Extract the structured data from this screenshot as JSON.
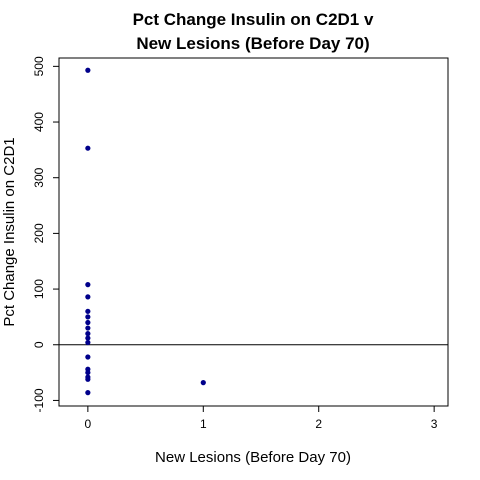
{
  "chart_data": {
    "type": "scatter",
    "title_lines": [
      "Pct Change Insulin on C2D1 v",
      "New Lesions (Before Day 70)"
    ],
    "xlabel": "New Lesions (Before Day 70)",
    "ylabel": "Pct Change Insulin on C2D1",
    "xlim": [
      -0.25,
      3.12
    ],
    "ylim": [
      -110,
      515
    ],
    "xticks": [
      0,
      1,
      2,
      3
    ],
    "yticks": [
      -100,
      0,
      100,
      200,
      300,
      400,
      500
    ],
    "reference_line_y": 0,
    "point_color": "#00008b",
    "points": [
      {
        "x": 0,
        "y": 493
      },
      {
        "x": 0,
        "y": 353
      },
      {
        "x": 0,
        "y": 108
      },
      {
        "x": 0,
        "y": 86
      },
      {
        "x": 0,
        "y": 60
      },
      {
        "x": 0,
        "y": 50
      },
      {
        "x": 0,
        "y": 40
      },
      {
        "x": 0,
        "y": 30
      },
      {
        "x": 0,
        "y": 20
      },
      {
        "x": 0,
        "y": 12
      },
      {
        "x": 0,
        "y": 4
      },
      {
        "x": 0,
        "y": -22
      },
      {
        "x": 0,
        "y": -44
      },
      {
        "x": 0,
        "y": -50
      },
      {
        "x": 0,
        "y": -58
      },
      {
        "x": 0,
        "y": -62
      },
      {
        "x": 0,
        "y": -86
      },
      {
        "x": 1,
        "y": -68
      }
    ]
  }
}
